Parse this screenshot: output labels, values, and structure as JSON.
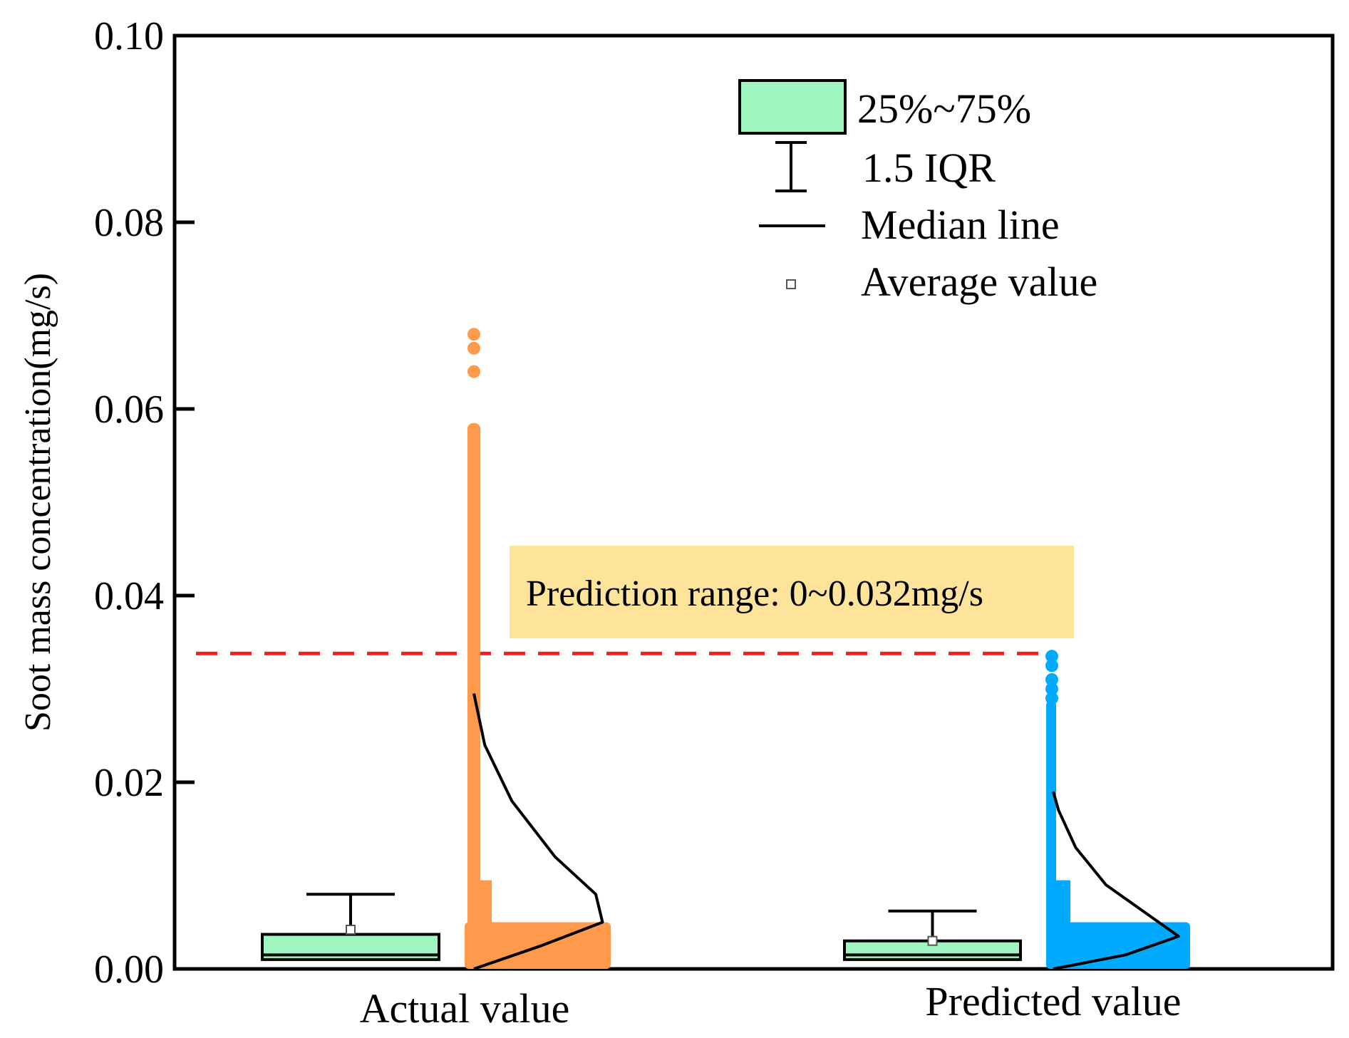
{
  "chart_data": {
    "type": "box",
    "title": "",
    "xlabel": "",
    "ylabel": "Soot mass concentration(mg/s)",
    "ylim": [
      0,
      0.1
    ],
    "yticks": [
      "0.00",
      "0.02",
      "0.04",
      "0.06",
      "0.08",
      "0.10"
    ],
    "ytick_values": [
      0,
      0.02,
      0.04,
      0.06,
      0.08,
      0.1
    ],
    "categories": [
      "Actual value",
      "Predicted value"
    ],
    "series": [
      {
        "name": "Actual value",
        "box": {
          "whisker_low": 0.001,
          "q1": 0.001,
          "median": 0.0015,
          "q3": 0.0037,
          "whisker_high": 0.008,
          "mean": 0.0042
        },
        "points_max": 0.068,
        "dense_band_top": 0.005,
        "color": "#ff9a4d",
        "distribution_curve": [
          [
            0.0,
            0.0
          ],
          [
            0.0025,
            0.5
          ],
          [
            0.005,
            0.95
          ],
          [
            0.008,
            0.9
          ],
          [
            0.012,
            0.6
          ],
          [
            0.018,
            0.28
          ],
          [
            0.024,
            0.08
          ],
          [
            0.0295,
            0.0
          ]
        ]
      },
      {
        "name": "Predicted value",
        "box": {
          "whisker_low": 0.001,
          "q1": 0.001,
          "median": 0.0015,
          "q3": 0.003,
          "whisker_high": 0.0062,
          "mean": 0.003
        },
        "points_max": 0.0335,
        "dense_band_top": 0.005,
        "color": "#00aaff",
        "distribution_curve": [
          [
            0.0,
            0.0
          ],
          [
            0.0015,
            0.55
          ],
          [
            0.0035,
            0.95
          ],
          [
            0.006,
            0.7
          ],
          [
            0.009,
            0.4
          ],
          [
            0.013,
            0.17
          ],
          [
            0.017,
            0.04
          ],
          [
            0.019,
            0.0
          ]
        ]
      }
    ],
    "threshold_line": {
      "value": 0.0338,
      "color": "#ff1a1a",
      "style": "dashed"
    },
    "annotation": {
      "text": "Prediction range: 0~0.032mg/s",
      "background": "#fde49a"
    },
    "box_fill": "#9ff5c0",
    "legend": {
      "position": "top-right",
      "items": [
        {
          "label": "25%~75%",
          "symbol": "box"
        },
        {
          "label": "1.5 IQR",
          "symbol": "whisker"
        },
        {
          "label": "Median line",
          "symbol": "line"
        },
        {
          "label": "Average value",
          "symbol": "square"
        }
      ]
    }
  }
}
